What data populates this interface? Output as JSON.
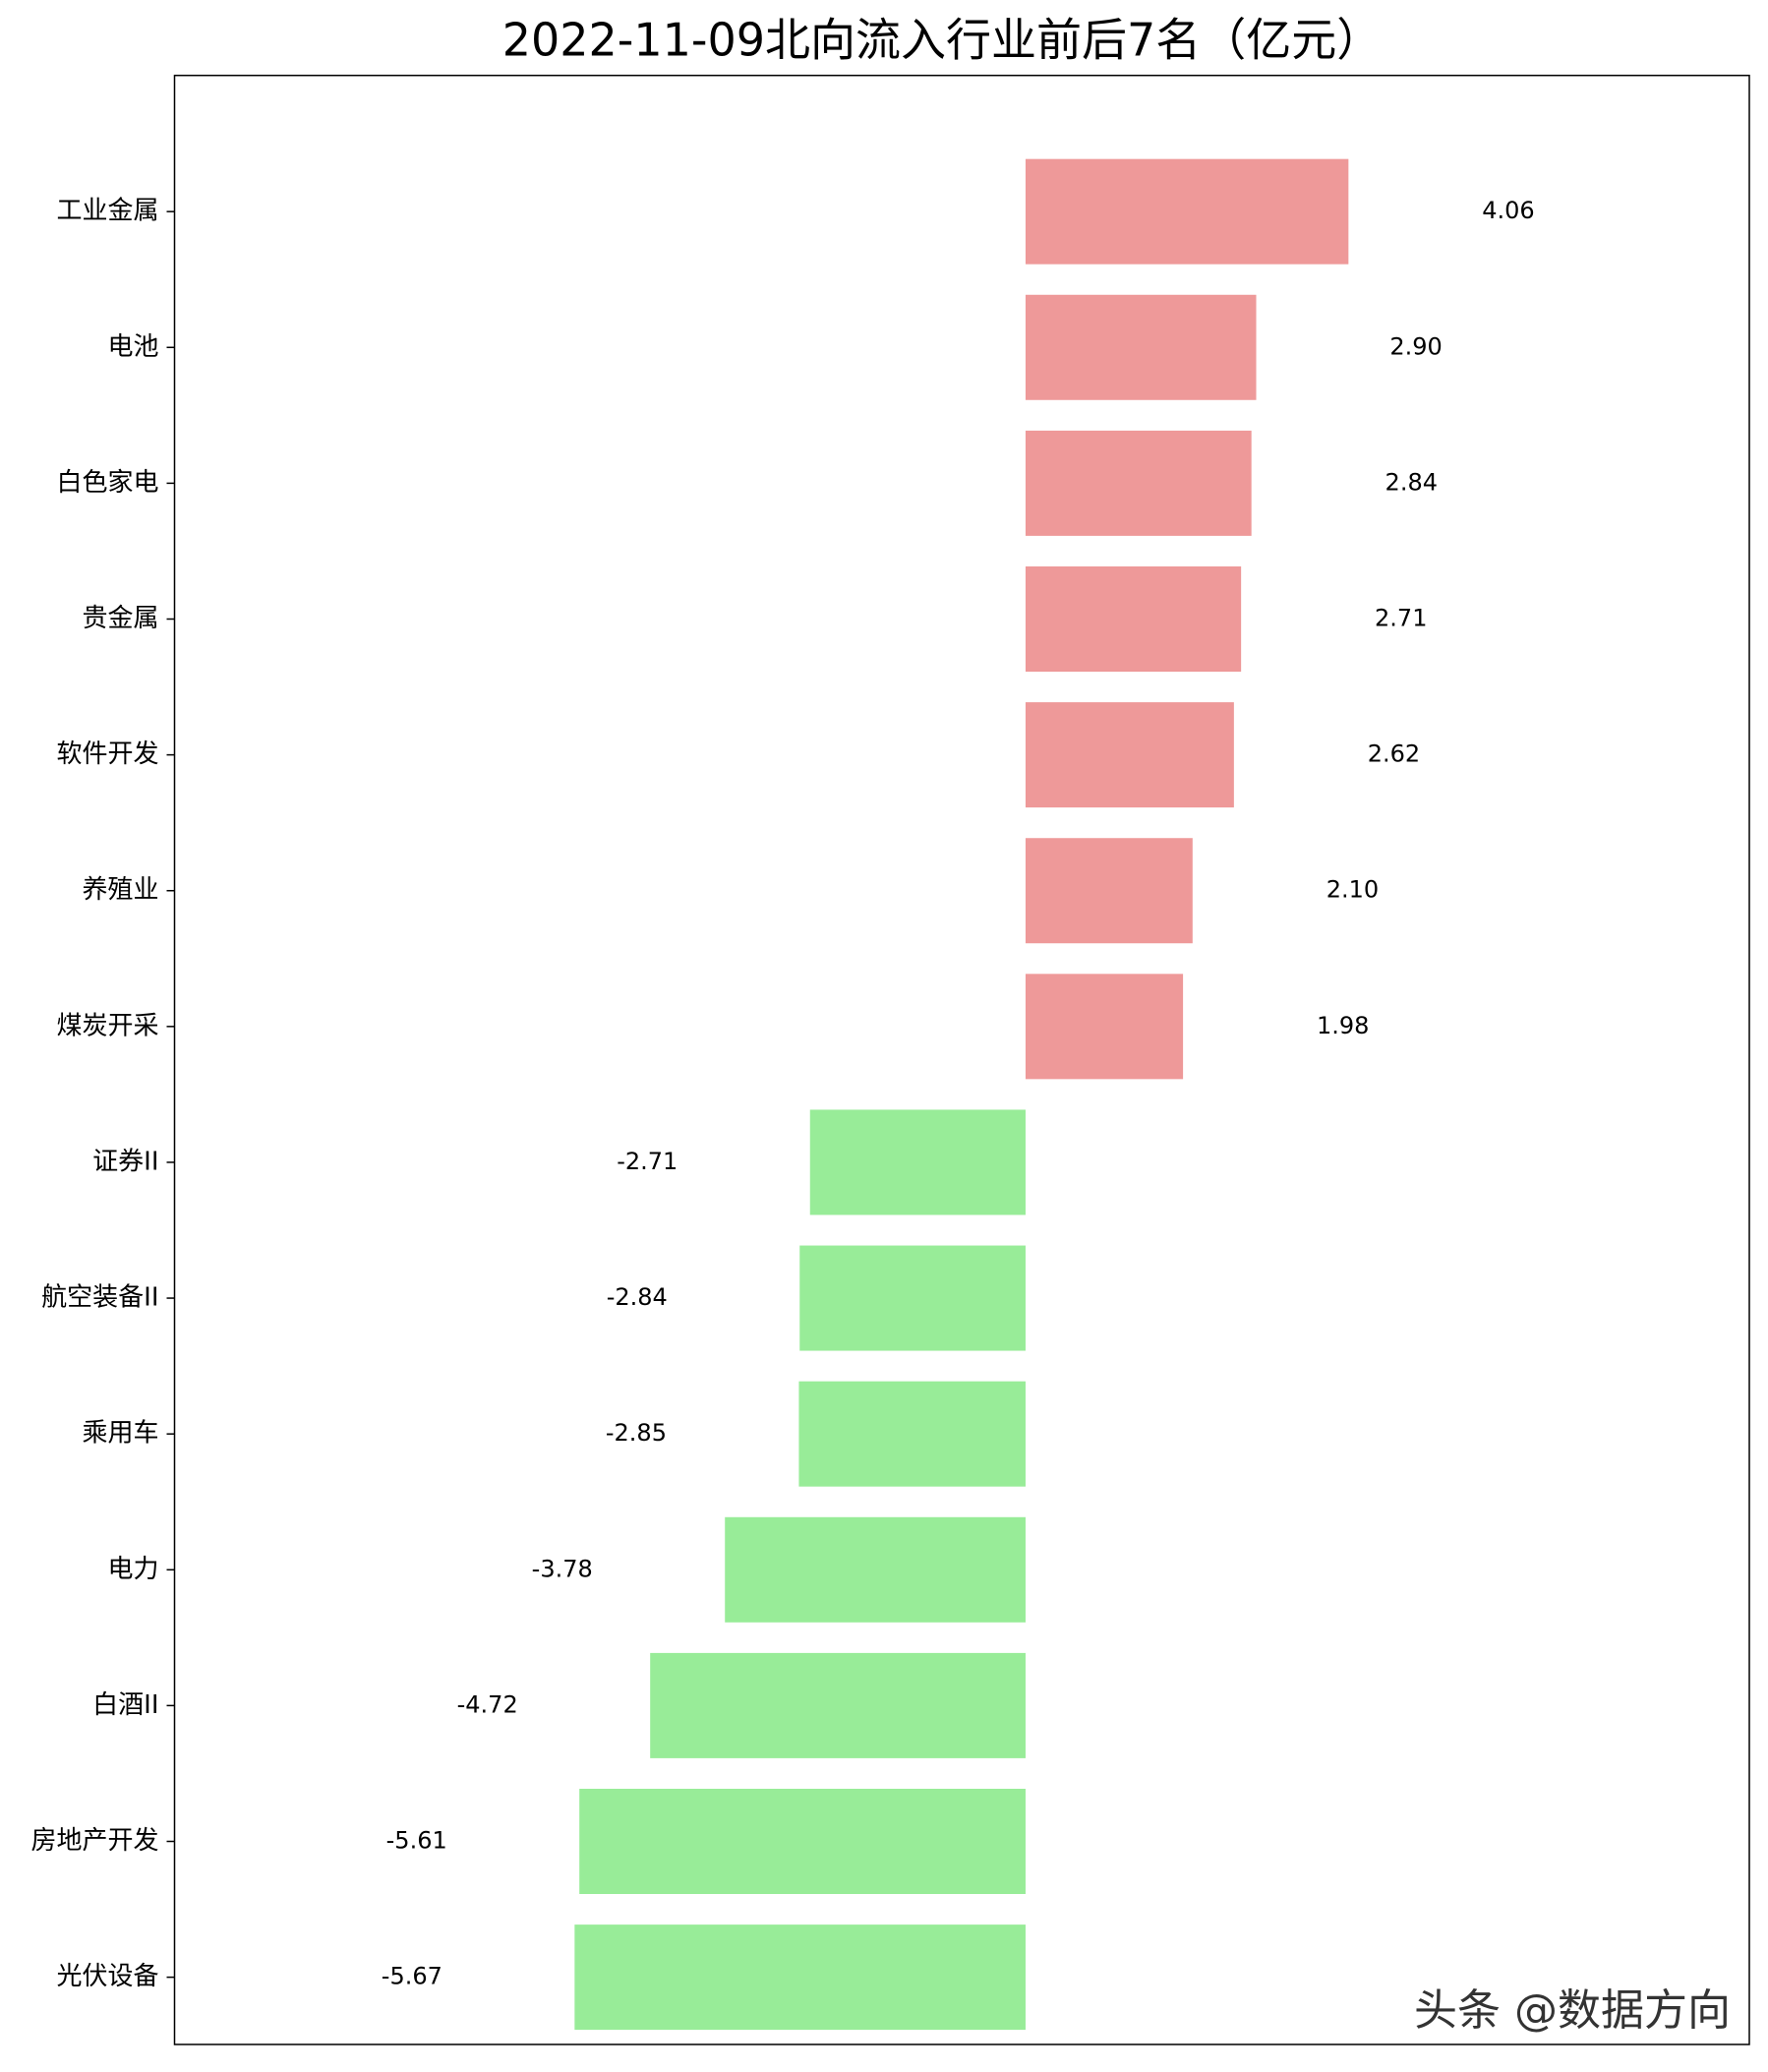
{
  "chart_data": {
    "type": "barh",
    "title": "2022-11-09北向流入行业前后7名（亿元）",
    "categories": [
      "工业金属",
      "电池",
      "白色家电",
      "贵金属",
      "软件开发",
      "养殖业",
      "煤炭开采",
      "证券II",
      "航空装备II",
      "乘用车",
      "电力",
      "白酒II",
      "房地产开发",
      "光伏设备"
    ],
    "values": [
      4.06,
      2.9,
      2.84,
      2.71,
      2.62,
      2.1,
      1.98,
      -2.71,
      -2.84,
      -2.85,
      -3.78,
      -4.72,
      -5.61,
      -5.67
    ],
    "value_labels": [
      "4.06",
      "2.90",
      "2.84",
      "2.71",
      "2.62",
      "2.10",
      "1.98",
      "-2.71",
      "-2.84",
      "-2.85",
      "-3.78",
      "-4.72",
      "-5.61",
      "-5.67"
    ],
    "colors": {
      "positive": "#ee9999",
      "negative": "#98ec98"
    },
    "xlim": [
      -10.7,
      9.1
    ],
    "watermark": "头条 @数据方向"
  }
}
